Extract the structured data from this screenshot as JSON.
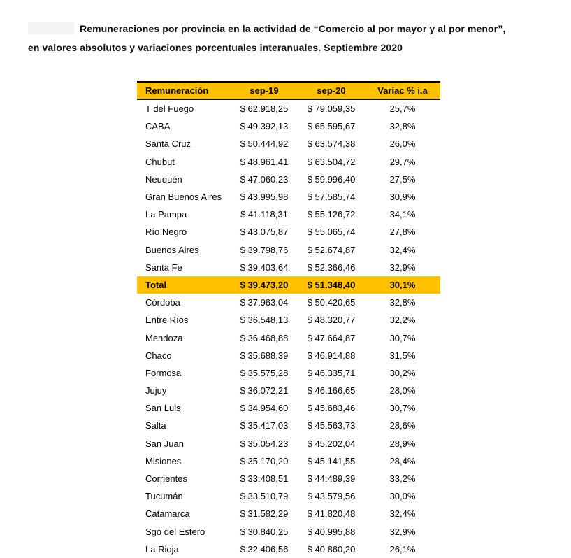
{
  "title": {
    "line1": "Remuneraciones por provincia en la actividad de “Comercio al por mayor y al por menor”,",
    "line2": "en valores absolutos y variaciones porcentuales interanuales. Septiembre 2020"
  },
  "colors": {
    "highlight": "#FFC000",
    "text": "#000000"
  },
  "table": {
    "headers": [
      "Remuneración",
      "sep-19",
      "sep-20",
      "Variac % i.a"
    ],
    "rows": [
      {
        "name": "T del Fuego",
        "sep19": "$ 62.918,25",
        "sep20": "$ 79.059,35",
        "variac": "25,7%",
        "is_total": false
      },
      {
        "name": "CABA",
        "sep19": "$ 49.392,13",
        "sep20": "$ 65.595,67",
        "variac": "32,8%",
        "is_total": false
      },
      {
        "name": "Santa Cruz",
        "sep19": "$ 50.444,92",
        "sep20": "$ 63.574,38",
        "variac": "26,0%",
        "is_total": false
      },
      {
        "name": "Chubut",
        "sep19": "$ 48.961,41",
        "sep20": "$ 63.504,72",
        "variac": "29,7%",
        "is_total": false
      },
      {
        "name": "Neuquén",
        "sep19": "$ 47.060,23",
        "sep20": "$ 59.996,40",
        "variac": "27,5%",
        "is_total": false
      },
      {
        "name": "Gran Buenos Aires",
        "sep19": "$ 43.995,98",
        "sep20": "$ 57.585,74",
        "variac": "30,9%",
        "is_total": false
      },
      {
        "name": "La Pampa",
        "sep19": "$ 41.118,31",
        "sep20": "$ 55.126,72",
        "variac": "34,1%",
        "is_total": false
      },
      {
        "name": "Río Negro",
        "sep19": "$ 43.075,87",
        "sep20": "$ 55.065,74",
        "variac": "27,8%",
        "is_total": false
      },
      {
        "name": "Buenos Aires",
        "sep19": "$ 39.798,76",
        "sep20": "$ 52.674,87",
        "variac": "32,4%",
        "is_total": false
      },
      {
        "name": "Santa Fe",
        "sep19": "$ 39.403,64",
        "sep20": "$ 52.366,46",
        "variac": "32,9%",
        "is_total": false
      },
      {
        "name": "Total",
        "sep19": "$ 39.473,20",
        "sep20": "$ 51.348,40",
        "variac": "30,1%",
        "is_total": true
      },
      {
        "name": "Córdoba",
        "sep19": "$ 37.963,04",
        "sep20": "$ 50.420,65",
        "variac": "32,8%",
        "is_total": false
      },
      {
        "name": "Entre Ríos",
        "sep19": "$ 36.548,13",
        "sep20": "$ 48.320,77",
        "variac": "32,2%",
        "is_total": false
      },
      {
        "name": "Mendoza",
        "sep19": "$ 36.468,88",
        "sep20": "$ 47.664,87",
        "variac": "30,7%",
        "is_total": false
      },
      {
        "name": "Chaco",
        "sep19": "$ 35.688,39",
        "sep20": "$ 46.914,88",
        "variac": "31,5%",
        "is_total": false
      },
      {
        "name": "Formosa",
        "sep19": "$ 35.575,28",
        "sep20": "$ 46.335,71",
        "variac": "30,2%",
        "is_total": false
      },
      {
        "name": "Jujuy",
        "sep19": "$ 36.072,21",
        "sep20": "$ 46.166,65",
        "variac": "28,0%",
        "is_total": false
      },
      {
        "name": "San Luis",
        "sep19": "$ 34.954,60",
        "sep20": "$ 45.683,46",
        "variac": "30,7%",
        "is_total": false
      },
      {
        "name": "Salta",
        "sep19": "$ 35.417,03",
        "sep20": "$ 45.563,73",
        "variac": "28,6%",
        "is_total": false
      },
      {
        "name": "San Juan",
        "sep19": "$ 35.054,23",
        "sep20": "$ 45.202,04",
        "variac": "28,9%",
        "is_total": false
      },
      {
        "name": "Misiones",
        "sep19": "$ 35.170,20",
        "sep20": "$ 45.141,55",
        "variac": "28,4%",
        "is_total": false
      },
      {
        "name": "Corrientes",
        "sep19": "$ 33.408,51",
        "sep20": "$ 44.489,39",
        "variac": "33,2%",
        "is_total": false
      },
      {
        "name": "Tucumán",
        "sep19": "$ 33.510,79",
        "sep20": "$ 43.579,56",
        "variac": "30,0%",
        "is_total": false
      },
      {
        "name": "Catamarca",
        "sep19": "$ 31.582,29",
        "sep20": "$ 41.820,48",
        "variac": "32,4%",
        "is_total": false
      },
      {
        "name": "Sgo del Estero",
        "sep19": "$ 30.840,25",
        "sep20": "$ 40.995,88",
        "variac": "32,9%",
        "is_total": false
      },
      {
        "name": "La Rioja",
        "sep19": "$ 32.406,56",
        "sep20": "$ 40.860,20",
        "variac": "26,1%",
        "is_total": false
      }
    ]
  }
}
